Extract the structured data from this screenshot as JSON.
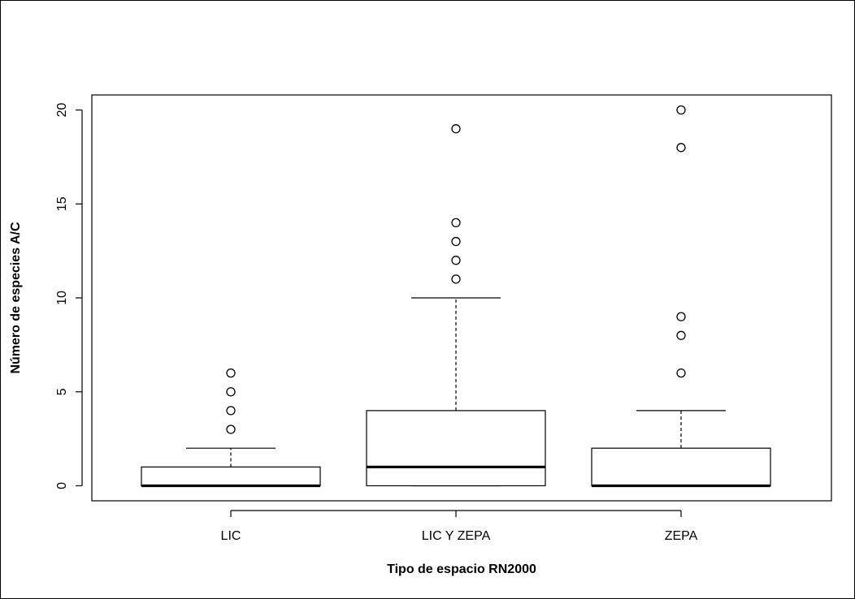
{
  "chart_data": {
    "type": "boxplot",
    "title": "",
    "xlabel": "Tipo de espacio RN2000",
    "ylabel": "Número de especies A/C",
    "categories": [
      "LIC",
      "LIC Y ZEPA",
      "ZEPA"
    ],
    "ylim": [
      -0.8,
      20.8
    ],
    "yticks": [
      0,
      5,
      10,
      15,
      20
    ],
    "grid": false,
    "boxes": [
      {
        "category": "LIC",
        "whisker_low": 0,
        "q1": 0,
        "median": 0,
        "q3": 1,
        "whisker_high": 2,
        "outliers": [
          3,
          4,
          5,
          6
        ]
      },
      {
        "category": "LIC Y ZEPA",
        "whisker_low": 0,
        "q1": 0,
        "median": 1,
        "q3": 4,
        "whisker_high": 10,
        "outliers": [
          11,
          12,
          13,
          14,
          19
        ]
      },
      {
        "category": "ZEPA",
        "whisker_low": 0,
        "q1": 0,
        "median": 0,
        "q3": 2,
        "whisker_high": 4,
        "outliers": [
          6,
          8,
          9,
          18,
          20
        ]
      }
    ]
  }
}
